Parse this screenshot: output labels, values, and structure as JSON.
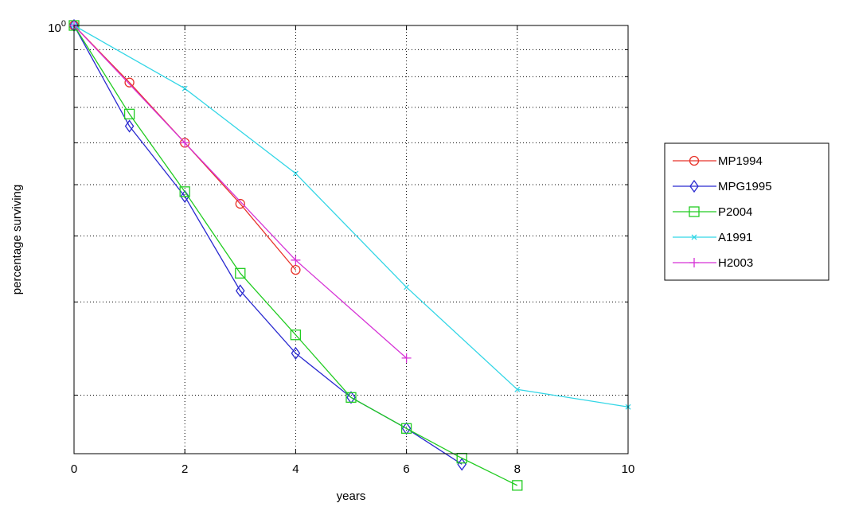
{
  "chart_data": {
    "type": "line",
    "xlabel": "years",
    "ylabel": "percentage surviving",
    "xlim": [
      0,
      10
    ],
    "ylim": [
      0.155,
      1
    ],
    "yscale": "log",
    "grid": true,
    "legend_position": "right-outside",
    "xticks": [
      0,
      2,
      4,
      6,
      8,
      10
    ],
    "yticks": [
      1
    ],
    "ytick_labels": [
      {
        "base": "10",
        "exp": "0"
      }
    ],
    "series": [
      {
        "name": "MP1994",
        "marker": "circle",
        "color": "#e8332a",
        "x": [
          0,
          1,
          2,
          3,
          4
        ],
        "y": [
          1.0,
          0.78,
          0.6,
          0.46,
          0.345
        ]
      },
      {
        "name": "MPG1995",
        "marker": "diamond",
        "color": "#2a2ad0",
        "x": [
          0,
          1,
          2,
          3,
          4,
          5,
          6,
          7
        ],
        "y": [
          1.0,
          0.645,
          0.475,
          0.315,
          0.24,
          0.198,
          0.173,
          0.148
        ]
      },
      {
        "name": "P2004",
        "marker": "square",
        "color": "#22cc22",
        "x": [
          0,
          1,
          2,
          3,
          4,
          5,
          6,
          7,
          8
        ],
        "y": [
          1.0,
          0.68,
          0.485,
          0.34,
          0.26,
          0.198,
          0.173,
          0.152,
          0.135
        ]
      },
      {
        "name": "A1991",
        "marker": "x",
        "color": "#33d6e6",
        "x": [
          0,
          2,
          4,
          6,
          8,
          10
        ],
        "y": [
          1.0,
          0.76,
          0.525,
          0.32,
          0.205,
          0.19
        ]
      },
      {
        "name": "H2003",
        "marker": "plus",
        "color": "#d633d6",
        "x": [
          0,
          2,
          4,
          6
        ],
        "y": [
          1.0,
          0.6,
          0.36,
          0.235
        ]
      }
    ]
  }
}
